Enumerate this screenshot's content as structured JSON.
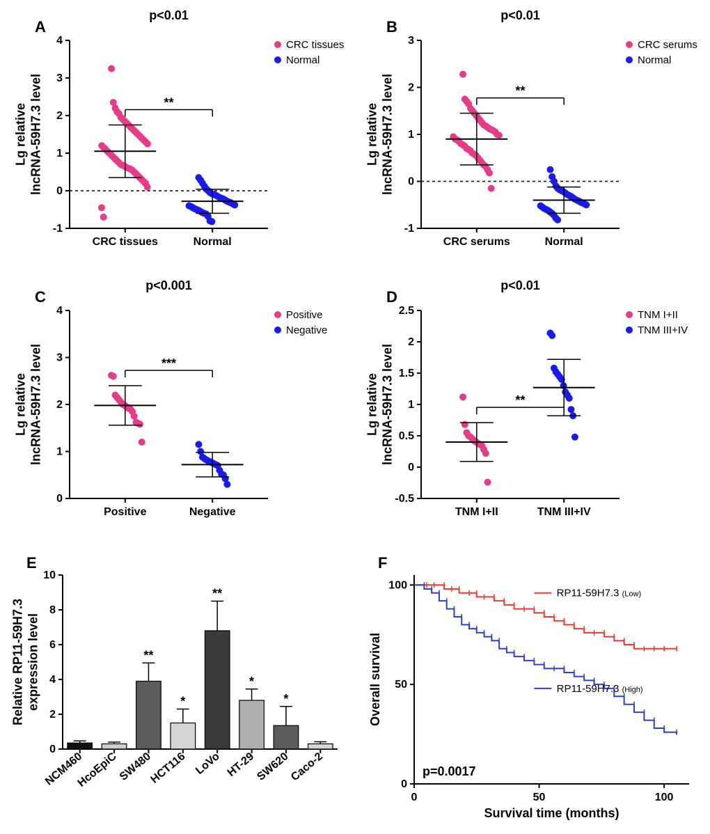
{
  "colors": {
    "pink": "#e73a89",
    "blue": "#1a1af0",
    "red_line": "#ef3b2c",
    "blue_line": "#2b3fd6",
    "black": "#000000",
    "bar_fill_dark": "#4a4a4a",
    "bar_fill_mid": "#7a7a7a",
    "bar_fill_light": "#cfcfcf",
    "bar_fill_black": "#111111",
    "bg": "#ffffff"
  },
  "panelA": {
    "label": "A",
    "pval": "p<0.01",
    "sig": "**",
    "ylabel_line1": "Lg relative",
    "ylabel_line2": "lncRNA-59H7.3 level",
    "categories": [
      "CRC tissues",
      "Normal"
    ],
    "legend": [
      "CRC tissues",
      "Normal"
    ],
    "ylim": [
      -1,
      4
    ],
    "yticks": [
      -1,
      0,
      1,
      2,
      3,
      4
    ],
    "zero_dashed": true,
    "series": [
      {
        "name": "CRC tissues",
        "color": "#e73a89",
        "mean": 1.05,
        "sd": 0.7,
        "points": [
          3.25,
          2.35,
          2.2,
          2.1,
          2.05,
          1.95,
          1.9,
          1.85,
          1.8,
          1.75,
          1.7,
          1.65,
          1.6,
          1.55,
          1.5,
          1.45,
          1.4,
          1.35,
          1.3,
          1.25,
          1.2,
          1.15,
          1.1,
          1.05,
          1.0,
          0.95,
          0.9,
          0.85,
          0.8,
          0.75,
          0.7,
          0.68,
          0.65,
          0.62,
          0.6,
          0.58,
          0.55,
          0.5,
          0.45,
          0.4,
          0.35,
          0.3,
          0.25,
          0.2,
          0.1,
          -0.45,
          -0.7
        ]
      },
      {
        "name": "Normal",
        "color": "#1a1af0",
        "mean": -0.28,
        "sd": 0.32,
        "points": [
          0.35,
          0.28,
          0.2,
          0.12,
          0.05,
          0.0,
          -0.05,
          -0.08,
          -0.1,
          -0.12,
          -0.15,
          -0.18,
          -0.2,
          -0.22,
          -0.25,
          -0.28,
          -0.3,
          -0.32,
          -0.35,
          -0.38,
          -0.4,
          -0.42,
          -0.45,
          -0.48,
          -0.5,
          -0.52,
          -0.55,
          -0.58,
          -0.6,
          -0.62,
          -0.68,
          -0.8,
          -0.82
        ]
      }
    ]
  },
  "panelB": {
    "label": "B",
    "pval": "p<0.01",
    "sig": "**",
    "ylabel_line1": "Lg relative",
    "ylabel_line2": "lncRNA-59H7.3 level",
    "categories": [
      "CRC serums",
      "Normal"
    ],
    "legend": [
      "CRC serums",
      "Normal"
    ],
    "ylim": [
      -1,
      3
    ],
    "yticks": [
      -1,
      0,
      1,
      2,
      3
    ],
    "zero_dashed": true,
    "series": [
      {
        "name": "CRC serums",
        "color": "#e73a89",
        "mean": 0.9,
        "sd": 0.55,
        "points": [
          2.28,
          1.75,
          1.7,
          1.65,
          1.55,
          1.5,
          1.45,
          1.4,
          1.35,
          1.3,
          1.25,
          1.2,
          1.18,
          1.15,
          1.12,
          1.1,
          1.08,
          1.05,
          1.0,
          0.98,
          0.95,
          0.9,
          0.88,
          0.85,
          0.8,
          0.78,
          0.75,
          0.7,
          0.68,
          0.65,
          0.6,
          0.58,
          0.55,
          0.5,
          0.45,
          0.4,
          0.35,
          0.32,
          0.25,
          0.18,
          -0.15
        ]
      },
      {
        "name": "Normal",
        "color": "#1a1af0",
        "mean": -0.4,
        "sd": 0.28,
        "points": [
          0.25,
          0.1,
          0.0,
          -0.1,
          -0.15,
          -0.18,
          -0.2,
          -0.22,
          -0.25,
          -0.28,
          -0.3,
          -0.32,
          -0.35,
          -0.38,
          -0.4,
          -0.42,
          -0.44,
          -0.46,
          -0.48,
          -0.5,
          -0.52,
          -0.55,
          -0.58,
          -0.6,
          -0.62,
          -0.65,
          -0.68,
          -0.72,
          -0.78,
          -0.82
        ]
      }
    ]
  },
  "panelC": {
    "label": "C",
    "pval": "p<0.001",
    "sig": "***",
    "ylabel_line1": "Lg relative",
    "ylabel_line2": "lncRNA-59H7.3 level",
    "categories": [
      "Positive",
      "Negative"
    ],
    "legend": [
      "Positive",
      "Negative"
    ],
    "ylim": [
      0,
      4
    ],
    "yticks": [
      0,
      1,
      2,
      3,
      4
    ],
    "zero_dashed": false,
    "series": [
      {
        "name": "Positive",
        "color": "#e73a89",
        "mean": 1.98,
        "sd": 0.42,
        "points": [
          2.62,
          2.6,
          2.2,
          2.15,
          2.1,
          2.05,
          2.0,
          1.98,
          1.95,
          1.92,
          1.9,
          1.85,
          1.75,
          1.62,
          1.6,
          1.58,
          1.2
        ]
      },
      {
        "name": "Negative",
        "color": "#1a1af0",
        "mean": 0.72,
        "sd": 0.26,
        "points": [
          1.15,
          1.0,
          0.88,
          0.85,
          0.82,
          0.8,
          0.78,
          0.76,
          0.74,
          0.72,
          0.7,
          0.6,
          0.52,
          0.5,
          0.42,
          0.3
        ]
      }
    ]
  },
  "panelD": {
    "label": "D",
    "pval": "p<0.01",
    "sig": "**",
    "ylabel_line1": "Lg relative",
    "ylabel_line2": "lncRNA-59H7.3 level",
    "categories": [
      "TNM I+II",
      "TNM III+IV"
    ],
    "legend": [
      "TNM I+II",
      "TNM III+IV"
    ],
    "ylim": [
      -0.5,
      2.5
    ],
    "yticks": [
      -0.5,
      0.0,
      0.5,
      1.0,
      1.5,
      2.0,
      2.5
    ],
    "zero_dashed": false,
    "series": [
      {
        "name": "TNM I+II",
        "color": "#e73a89",
        "mean": 0.4,
        "sd": 0.31,
        "points": [
          1.12,
          0.68,
          0.55,
          0.5,
          0.48,
          0.45,
          0.42,
          0.4,
          0.38,
          0.36,
          0.34,
          0.28,
          0.22,
          -0.24
        ]
      },
      {
        "name": "TNM III+IV",
        "color": "#1a1af0",
        "mean": 1.27,
        "sd": 0.45,
        "points": [
          2.14,
          2.1,
          1.58,
          1.52,
          1.48,
          1.44,
          1.4,
          1.3,
          1.2,
          1.15,
          1.1,
          0.92,
          0.82,
          0.48
        ]
      }
    ]
  },
  "panelE": {
    "label": "E",
    "ylabel_line1": "Relative RP11-59H7.3",
    "ylabel_line2": "expression level",
    "ylim": [
      0,
      10
    ],
    "yticks": [
      0,
      2,
      4,
      6,
      8,
      10
    ],
    "bars": [
      {
        "name": "NCM460",
        "value": 0.35,
        "err": 0.12,
        "fill": "#111111",
        "sig": ""
      },
      {
        "name": "HcoEpiC",
        "value": 0.3,
        "err": 0.1,
        "fill": "#cfcfcf",
        "sig": ""
      },
      {
        "name": "SW480",
        "value": 3.9,
        "err": 1.05,
        "fill": "#5c5c5c",
        "sig": "**"
      },
      {
        "name": "HCT116",
        "value": 1.5,
        "err": 0.8,
        "fill": "#d6d6d6",
        "sig": "*"
      },
      {
        "name": "LoVo",
        "value": 6.8,
        "err": 1.7,
        "fill": "#3a3a3a",
        "sig": "**"
      },
      {
        "name": "HT-29",
        "value": 2.8,
        "err": 0.65,
        "fill": "#b0b0b0",
        "sig": "*"
      },
      {
        "name": "SW620",
        "value": 1.35,
        "err": 1.1,
        "fill": "#5c5c5c",
        "sig": "*"
      },
      {
        "name": "Caco-2",
        "value": 0.3,
        "err": 0.12,
        "fill": "#d6d6d6",
        "sig": ""
      }
    ]
  },
  "panelF": {
    "label": "F",
    "ylabel": "Overall survival",
    "xlabel": "Survival time (months)",
    "xlim": [
      0,
      110
    ],
    "ylim": [
      0,
      105
    ],
    "xticks": [
      0,
      50,
      100
    ],
    "yticks": [
      0,
      50,
      100
    ],
    "pval_text": "p=0.0017",
    "legend_low": "RP11-59H7.3",
    "legend_low_sub": "(Low)",
    "legend_high": "RP11-59H7.3",
    "legend_high_sub": "(High)",
    "low_color": "#ef3b2c",
    "high_color": "#2b3fd6",
    "low_curve": [
      [
        0,
        100
      ],
      [
        5,
        100
      ],
      [
        8,
        100
      ],
      [
        12,
        98
      ],
      [
        15,
        98
      ],
      [
        18,
        96
      ],
      [
        22,
        96
      ],
      [
        25,
        94
      ],
      [
        28,
        94
      ],
      [
        32,
        92
      ],
      [
        36,
        90
      ],
      [
        40,
        88
      ],
      [
        44,
        88
      ],
      [
        48,
        86
      ],
      [
        52,
        84
      ],
      [
        56,
        82
      ],
      [
        60,
        80
      ],
      [
        64,
        78
      ],
      [
        68,
        76
      ],
      [
        72,
        76
      ],
      [
        76,
        74
      ],
      [
        80,
        72
      ],
      [
        84,
        70
      ],
      [
        88,
        68
      ],
      [
        92,
        68
      ],
      [
        96,
        68
      ],
      [
        100,
        68
      ],
      [
        105,
        68
      ]
    ],
    "high_curve": [
      [
        0,
        100
      ],
      [
        4,
        98
      ],
      [
        7,
        96
      ],
      [
        10,
        92
      ],
      [
        13,
        88
      ],
      [
        16,
        84
      ],
      [
        19,
        80
      ],
      [
        22,
        78
      ],
      [
        25,
        76
      ],
      [
        28,
        74
      ],
      [
        31,
        72
      ],
      [
        34,
        68
      ],
      [
        37,
        66
      ],
      [
        40,
        64
      ],
      [
        44,
        62
      ],
      [
        48,
        60
      ],
      [
        52,
        58
      ],
      [
        56,
        58
      ],
      [
        60,
        56
      ],
      [
        64,
        54
      ],
      [
        68,
        52
      ],
      [
        72,
        50
      ],
      [
        76,
        48
      ],
      [
        80,
        44
      ],
      [
        84,
        40
      ],
      [
        88,
        36
      ],
      [
        92,
        32
      ],
      [
        96,
        28
      ],
      [
        100,
        26
      ],
      [
        105,
        25
      ]
    ]
  }
}
